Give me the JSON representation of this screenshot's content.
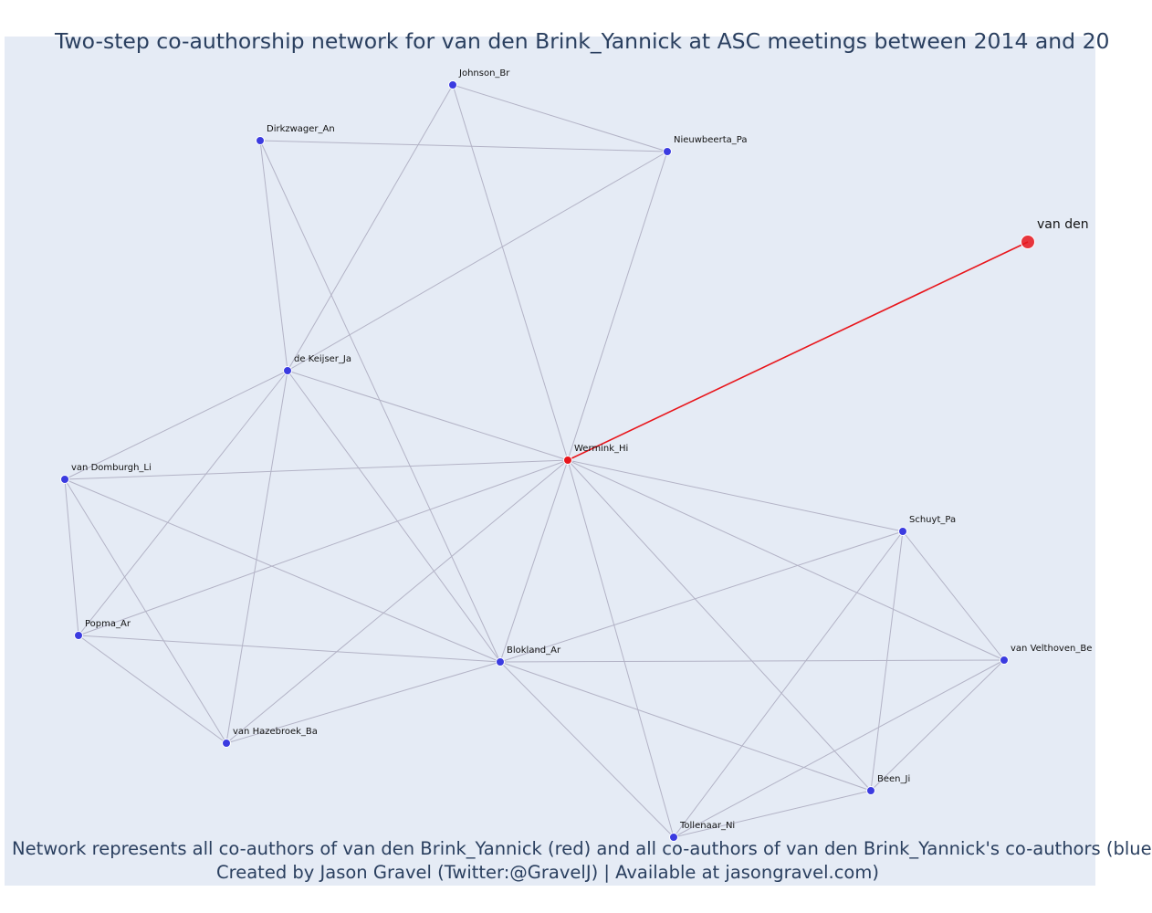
{
  "title": "Two-step co-authorship network for van den Brink_Yannick at ASC meetings between 2014 and 20",
  "footer": {
    "line1": "Network represents all co-authors of van den Brink_Yannick (red) and all co-authors of van den Brink_Yannick's co-authors (blue",
    "line2": "Created by Jason Gravel (Twitter:@GravelJ) | Available at jasongravel.com)"
  },
  "colors": {
    "background": "#e5ebf5",
    "edge": "#b3b3c6",
    "focal_edge": "#e8151b",
    "coauthor_node": "#e8151b",
    "second_step_node": "#3b3be0",
    "node_outline": "#ffffff",
    "title_text": "#2a3f5f"
  },
  "nodes": [
    {
      "id": "vdb",
      "label": "van den",
      "kind": "focal"
    },
    {
      "id": "wermink",
      "label": "Wermink_Hi",
      "kind": "coauthor"
    },
    {
      "id": "johnson",
      "label": "Johnson_Br",
      "kind": "second"
    },
    {
      "id": "dirkzwager",
      "label": "Dirkzwager_An",
      "kind": "second"
    },
    {
      "id": "nieuwbeerta",
      "label": "Nieuwbeerta_Pa",
      "kind": "second"
    },
    {
      "id": "dekeijser",
      "label": "de Keijser_Ja",
      "kind": "second"
    },
    {
      "id": "vandomburgh",
      "label": "van Domburgh_Li",
      "kind": "second"
    },
    {
      "id": "popma",
      "label": "Popma_Ar",
      "kind": "second"
    },
    {
      "id": "vanhazebroek",
      "label": "van Hazebroek_Ba",
      "kind": "second"
    },
    {
      "id": "blokland",
      "label": "Blokland_Ar",
      "kind": "second"
    },
    {
      "id": "schuyt",
      "label": "Schuyt_Pa",
      "kind": "second"
    },
    {
      "id": "vanvelthoven",
      "label": "van Velthoven_Be",
      "kind": "second"
    },
    {
      "id": "been",
      "label": "Been_Ji",
      "kind": "second"
    },
    {
      "id": "tollenaar",
      "label": "Tollenaar_Ni",
      "kind": "second"
    }
  ],
  "edges": [
    [
      "vdb",
      "wermink"
    ],
    [
      "johnson",
      "nieuwbeerta"
    ],
    [
      "johnson",
      "dekeijser"
    ],
    [
      "johnson",
      "wermink"
    ],
    [
      "dirkzwager",
      "nieuwbeerta"
    ],
    [
      "dirkzwager",
      "dekeijser"
    ],
    [
      "dirkzwager",
      "blokland"
    ],
    [
      "nieuwbeerta",
      "dekeijser"
    ],
    [
      "nieuwbeerta",
      "wermink"
    ],
    [
      "dekeijser",
      "vandomburgh"
    ],
    [
      "dekeijser",
      "wermink"
    ],
    [
      "dekeijser",
      "popma"
    ],
    [
      "dekeijser",
      "vanhazebroek"
    ],
    [
      "dekeijser",
      "blokland"
    ],
    [
      "vandomburgh",
      "wermink"
    ],
    [
      "vandomburgh",
      "popma"
    ],
    [
      "vandomburgh",
      "vanhazebroek"
    ],
    [
      "vandomburgh",
      "blokland"
    ],
    [
      "popma",
      "wermink"
    ],
    [
      "popma",
      "blokland"
    ],
    [
      "popma",
      "vanhazebroek"
    ],
    [
      "vanhazebroek",
      "wermink"
    ],
    [
      "vanhazebroek",
      "blokland"
    ],
    [
      "wermink",
      "blokland"
    ],
    [
      "wermink",
      "schuyt"
    ],
    [
      "wermink",
      "vanvelthoven"
    ],
    [
      "wermink",
      "been"
    ],
    [
      "wermink",
      "tollenaar"
    ],
    [
      "blokland",
      "schuyt"
    ],
    [
      "blokland",
      "vanvelthoven"
    ],
    [
      "blokland",
      "been"
    ],
    [
      "blokland",
      "tollenaar"
    ],
    [
      "schuyt",
      "vanvelthoven"
    ],
    [
      "schuyt",
      "been"
    ],
    [
      "schuyt",
      "tollenaar"
    ],
    [
      "vanvelthoven",
      "been"
    ],
    [
      "vanvelthoven",
      "tollenaar"
    ],
    [
      "been",
      "tollenaar"
    ]
  ]
}
